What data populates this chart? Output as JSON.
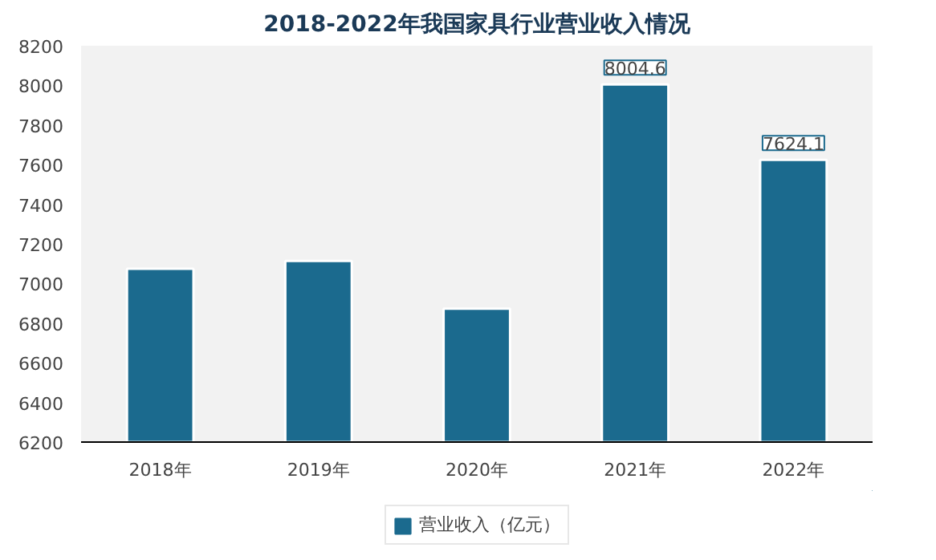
{
  "chart_data": {
    "type": "bar",
    "title": "2018-2022年我国家具行业营业收入情况",
    "categories": [
      "2018年",
      "2019年",
      "2020年",
      "2021年",
      "2022年"
    ],
    "series": [
      {
        "name": "营业收入（亿元）",
        "color": "#1b6a8e",
        "values": [
          7074,
          7114,
          6873,
          8004.6,
          7624.1
        ],
        "value_labels": [
          null,
          null,
          null,
          "8004.6",
          "7624.1"
        ]
      }
    ],
    "ylim": [
      6200,
      8200
    ],
    "yticks": [
      6200,
      6400,
      6600,
      6800,
      7000,
      7200,
      7400,
      7600,
      7800,
      8000,
      8200
    ],
    "grid": false,
    "legend": "bottom"
  }
}
